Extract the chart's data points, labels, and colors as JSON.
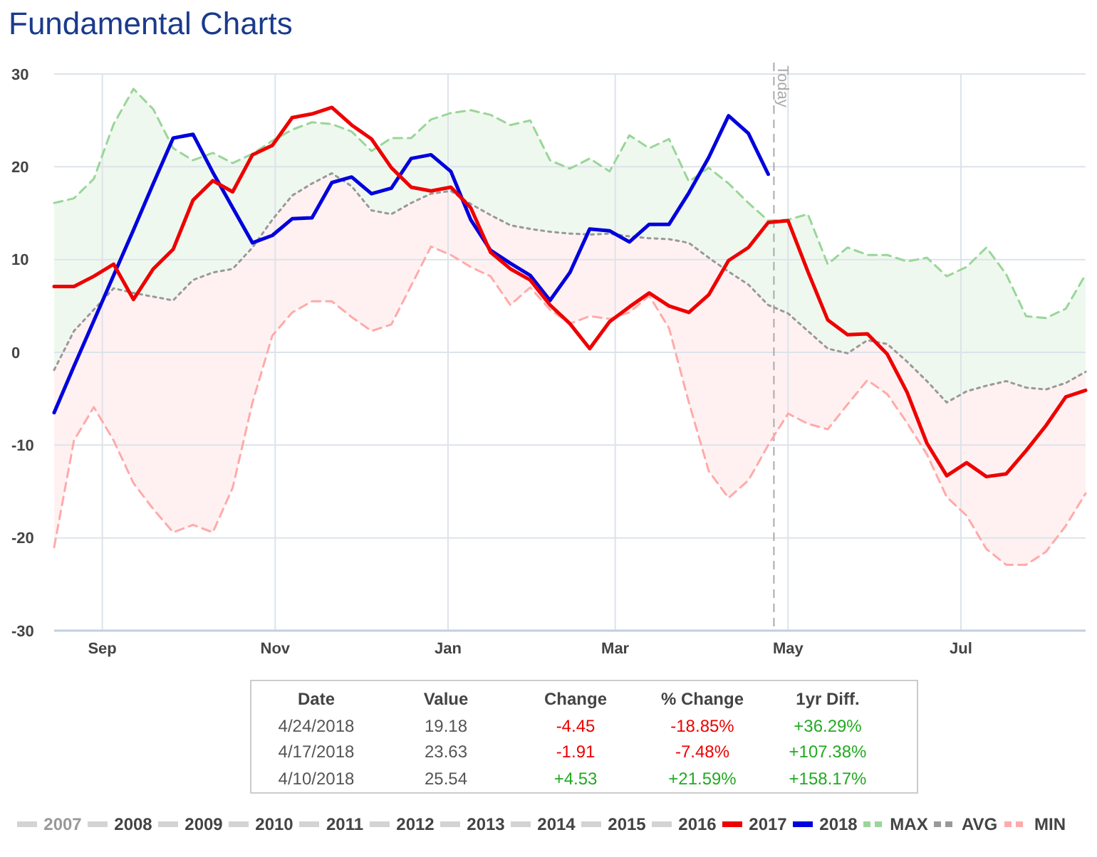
{
  "chart_data": {
    "type": "line",
    "title": "Fundamental Charts",
    "x": [
      "2017-08-15",
      "2017-08-22",
      "2017-08-29",
      "2017-09-05",
      "2017-09-12",
      "2017-09-19",
      "2017-09-26",
      "2017-10-03",
      "2017-10-10",
      "2017-10-17",
      "2017-10-24",
      "2017-10-31",
      "2017-11-07",
      "2017-11-14",
      "2017-11-21",
      "2017-11-28",
      "2017-12-05",
      "2017-12-12",
      "2017-12-19",
      "2017-12-26",
      "2018-01-02",
      "2018-01-09",
      "2018-01-16",
      "2018-01-23",
      "2018-01-30",
      "2018-02-06",
      "2018-02-13",
      "2018-02-20",
      "2018-02-27",
      "2018-03-06",
      "2018-03-13",
      "2018-03-20",
      "2018-03-27",
      "2018-04-03",
      "2018-04-10",
      "2018-04-17",
      "2018-04-24",
      "2018-05-01",
      "2018-05-08",
      "2018-05-15",
      "2018-05-22",
      "2018-05-29",
      "2018-06-05",
      "2018-06-12",
      "2018-06-19",
      "2018-06-26",
      "2018-07-03",
      "2018-07-10",
      "2018-07-17",
      "2018-07-24",
      "2018-07-31",
      "2018-08-07",
      "2018-08-14"
    ],
    "xlim": [
      "2017-08-15",
      "2018-08-14"
    ],
    "xticks": [
      {
        "value": "2017-09-01",
        "label": "Sep"
      },
      {
        "value": "2017-11-01",
        "label": "Nov"
      },
      {
        "value": "2018-01-01",
        "label": "Jan"
      },
      {
        "value": "2018-03-01",
        "label": "Mar"
      },
      {
        "value": "2018-05-01",
        "label": "May"
      },
      {
        "value": "2018-07-01",
        "label": "Jul"
      }
    ],
    "ylim": [
      -30,
      30
    ],
    "yticks": [
      -30,
      -20,
      -10,
      0,
      10,
      20,
      30
    ],
    "grid": true,
    "legend": "bottom",
    "ref_lines": [
      {
        "axis": "x",
        "value": "2018-04-26",
        "label": "Today",
        "color": "#aaaaaa",
        "line_style": "dashed"
      }
    ],
    "annotations": [
      "Date",
      "Value",
      "Change",
      "% Change",
      "1yr Diff.",
      "4/24/2018",
      "19.18",
      "-4.45",
      "-18.85%",
      "+36.29%",
      "4/17/2018",
      "23.63",
      "-1.91",
      "-7.48%",
      "+107.38%",
      "4/10/2018",
      "25.54",
      "+4.53",
      "+21.59%",
      "+158.17%",
      "2007",
      "2008",
      "2009",
      "2010",
      "2011",
      "2012",
      "2013",
      "2014",
      "2015",
      "2016"
    ],
    "series": [
      {
        "name": "2017",
        "color": "#ee0000",
        "line_style": "solid",
        "values": [
          7.1,
          7.1,
          8.2,
          9.5,
          5.7,
          9.0,
          11.1,
          16.4,
          18.5,
          17.3,
          21.3,
          22.3,
          25.3,
          25.7,
          26.4,
          24.5,
          23.0,
          19.9,
          17.8,
          17.4,
          17.8,
          15.6,
          10.8,
          9.0,
          7.8,
          5.1,
          3.1,
          0.4,
          3.3,
          4.9,
          6.4,
          5.0,
          4.3,
          6.2,
          9.9,
          11.3,
          14.0,
          14.2,
          8.7,
          3.5,
          1.9,
          2.0,
          -0.2,
          -4.3,
          -9.8,
          -13.3,
          -11.9,
          -13.4,
          -13.1,
          -10.6,
          -7.9,
          -4.8,
          -4.1
        ]
      },
      {
        "name": "2018",
        "color": "#0000dd",
        "line_style": "solid",
        "values": [
          -6.5,
          -1.5,
          3.4,
          8.3,
          13.2,
          18.2,
          23.1,
          23.5,
          19.4,
          15.6,
          11.8,
          12.6,
          14.4,
          14.5,
          18.3,
          18.9,
          17.1,
          17.7,
          20.9,
          21.3,
          19.5,
          14.3,
          11.0,
          9.6,
          8.3,
          5.6,
          8.6,
          13.3,
          13.1,
          11.9,
          13.8,
          13.8,
          17.2,
          21.0,
          25.5,
          23.6,
          19.2,
          null,
          null,
          null,
          null,
          null,
          null,
          null,
          null,
          null,
          null,
          null,
          null,
          null,
          null,
          null,
          null
        ]
      },
      {
        "name": "MAX",
        "color": "#99d699",
        "line_style": "dashed",
        "values": [
          16.1,
          16.6,
          18.7,
          24.6,
          28.4,
          26.2,
          22.0,
          20.7,
          21.5,
          20.4,
          21.4,
          22.8,
          24.0,
          24.8,
          24.6,
          23.8,
          21.7,
          23.1,
          23.1,
          25.1,
          25.8,
          26.1,
          25.6,
          24.5,
          25.0,
          20.7,
          19.8,
          20.9,
          19.5,
          23.4,
          22.0,
          23.0,
          18.4,
          19.9,
          18.2,
          16.1,
          14.2,
          14.3,
          14.9,
          9.5,
          11.3,
          10.5,
          10.5,
          9.8,
          10.2,
          8.2,
          9.2,
          11.3,
          8.4,
          3.9,
          3.7,
          4.7,
          8.4
        ],
        "upper": [
          16.1,
          16.6,
          18.7,
          24.6,
          28.4,
          26.2,
          22.0,
          20.7,
          21.5,
          20.4,
          21.4,
          22.8,
          24.0,
          24.8,
          24.6,
          23.8,
          21.7,
          23.1,
          23.1,
          25.1,
          25.8,
          26.1,
          25.6,
          24.5,
          25.0,
          20.7,
          19.8,
          20.9,
          19.5,
          23.4,
          22.0,
          23.0,
          18.4,
          19.9,
          18.2,
          16.1,
          14.2,
          14.3,
          14.9,
          9.5,
          11.3,
          10.5,
          10.5,
          9.8,
          10.2,
          8.2,
          9.2,
          11.3,
          8.4,
          3.9,
          3.7,
          4.7,
          8.4
        ],
        "lower": [
          -1.9,
          2.3,
          4.6,
          6.9,
          6.4,
          6.0,
          5.6,
          7.8,
          8.6,
          9.0,
          11.3,
          14.3,
          16.9,
          18.2,
          19.3,
          17.9,
          15.3,
          14.9,
          16.1,
          17.1,
          17.4,
          16.0,
          14.8,
          13.7,
          13.3,
          13.0,
          12.8,
          12.7,
          12.8,
          12.5,
          12.3,
          12.2,
          11.8,
          10.2,
          8.7,
          7.3,
          5.1,
          4.2,
          2.3,
          0.4,
          -0.1,
          1.3,
          0.9,
          -1.0,
          -3.1,
          -5.4,
          -4.2,
          -3.6,
          -3.1,
          -3.8,
          -4.0,
          -3.3,
          -2.1
        ]
      },
      {
        "name": "AVG",
        "color": "#999999",
        "line_style": "dotted",
        "values": [
          -1.9,
          2.3,
          4.6,
          6.9,
          6.4,
          6.0,
          5.6,
          7.8,
          8.6,
          9.0,
          11.3,
          14.3,
          16.9,
          18.2,
          19.3,
          17.9,
          15.3,
          14.9,
          16.1,
          17.1,
          17.4,
          16.0,
          14.8,
          13.7,
          13.3,
          13.0,
          12.8,
          12.7,
          12.8,
          12.5,
          12.3,
          12.2,
          11.8,
          10.2,
          8.7,
          7.3,
          5.1,
          4.2,
          2.3,
          0.4,
          -0.1,
          1.3,
          0.9,
          -1.0,
          -3.1,
          -5.4,
          -4.2,
          -3.6,
          -3.1,
          -3.8,
          -4.0,
          -3.3,
          -2.1
        ]
      },
      {
        "name": "MIN",
        "color": "#ffaaaa",
        "line_style": "dashed",
        "values": [
          -21.0,
          -9.5,
          -5.9,
          -9.5,
          -14.1,
          -16.9,
          -19.4,
          -18.6,
          -19.4,
          -14.6,
          -5.4,
          1.8,
          4.3,
          5.5,
          5.5,
          3.8,
          2.3,
          3.0,
          7.2,
          11.4,
          10.5,
          9.2,
          8.2,
          5.1,
          7.0,
          4.6,
          3.1,
          3.9,
          3.6,
          4.3,
          6.1,
          2.6,
          -5.4,
          -12.8,
          -15.7,
          -13.8,
          -10.0,
          -6.6,
          -7.7,
          -8.3,
          -5.6,
          -3.0,
          -4.5,
          -7.6,
          -11.0,
          -15.6,
          -17.6,
          -21.2,
          -22.9,
          -22.9,
          -21.5,
          -18.7,
          -15.2
        ],
        "upper": [
          -1.9,
          2.3,
          4.6,
          6.9,
          6.4,
          6.0,
          5.6,
          7.8,
          8.6,
          9.0,
          11.3,
          14.3,
          16.9,
          18.2,
          19.3,
          17.9,
          15.3,
          14.9,
          16.1,
          17.1,
          17.4,
          16.0,
          14.8,
          13.7,
          13.3,
          13.0,
          12.8,
          12.7,
          12.8,
          12.5,
          12.3,
          12.2,
          11.8,
          10.2,
          8.7,
          7.3,
          5.1,
          4.2,
          2.3,
          0.4,
          -0.1,
          1.3,
          0.9,
          -1.0,
          -3.1,
          -5.4,
          -4.2,
          -3.6,
          -3.1,
          -3.8,
          -4.0,
          -3.3,
          -2.1
        ],
        "lower": [
          -21.0,
          -9.5,
          -5.9,
          -9.5,
          -14.1,
          -16.9,
          -19.4,
          -18.6,
          -19.4,
          -14.6,
          -5.4,
          1.8,
          4.3,
          5.5,
          5.5,
          3.8,
          2.3,
          3.0,
          7.2,
          11.4,
          10.5,
          9.2,
          8.2,
          5.1,
          7.0,
          4.6,
          3.1,
          3.9,
          3.6,
          4.3,
          6.1,
          2.6,
          -5.4,
          -12.8,
          -15.7,
          -13.8,
          -10.0,
          -6.6,
          -7.7,
          -8.3,
          -5.6,
          -3.0,
          -4.5,
          -7.6,
          -11.0,
          -15.6,
          -17.6,
          -21.2,
          -22.9,
          -22.9,
          -21.5,
          -18.7,
          -15.2
        ]
      }
    ]
  }
}
